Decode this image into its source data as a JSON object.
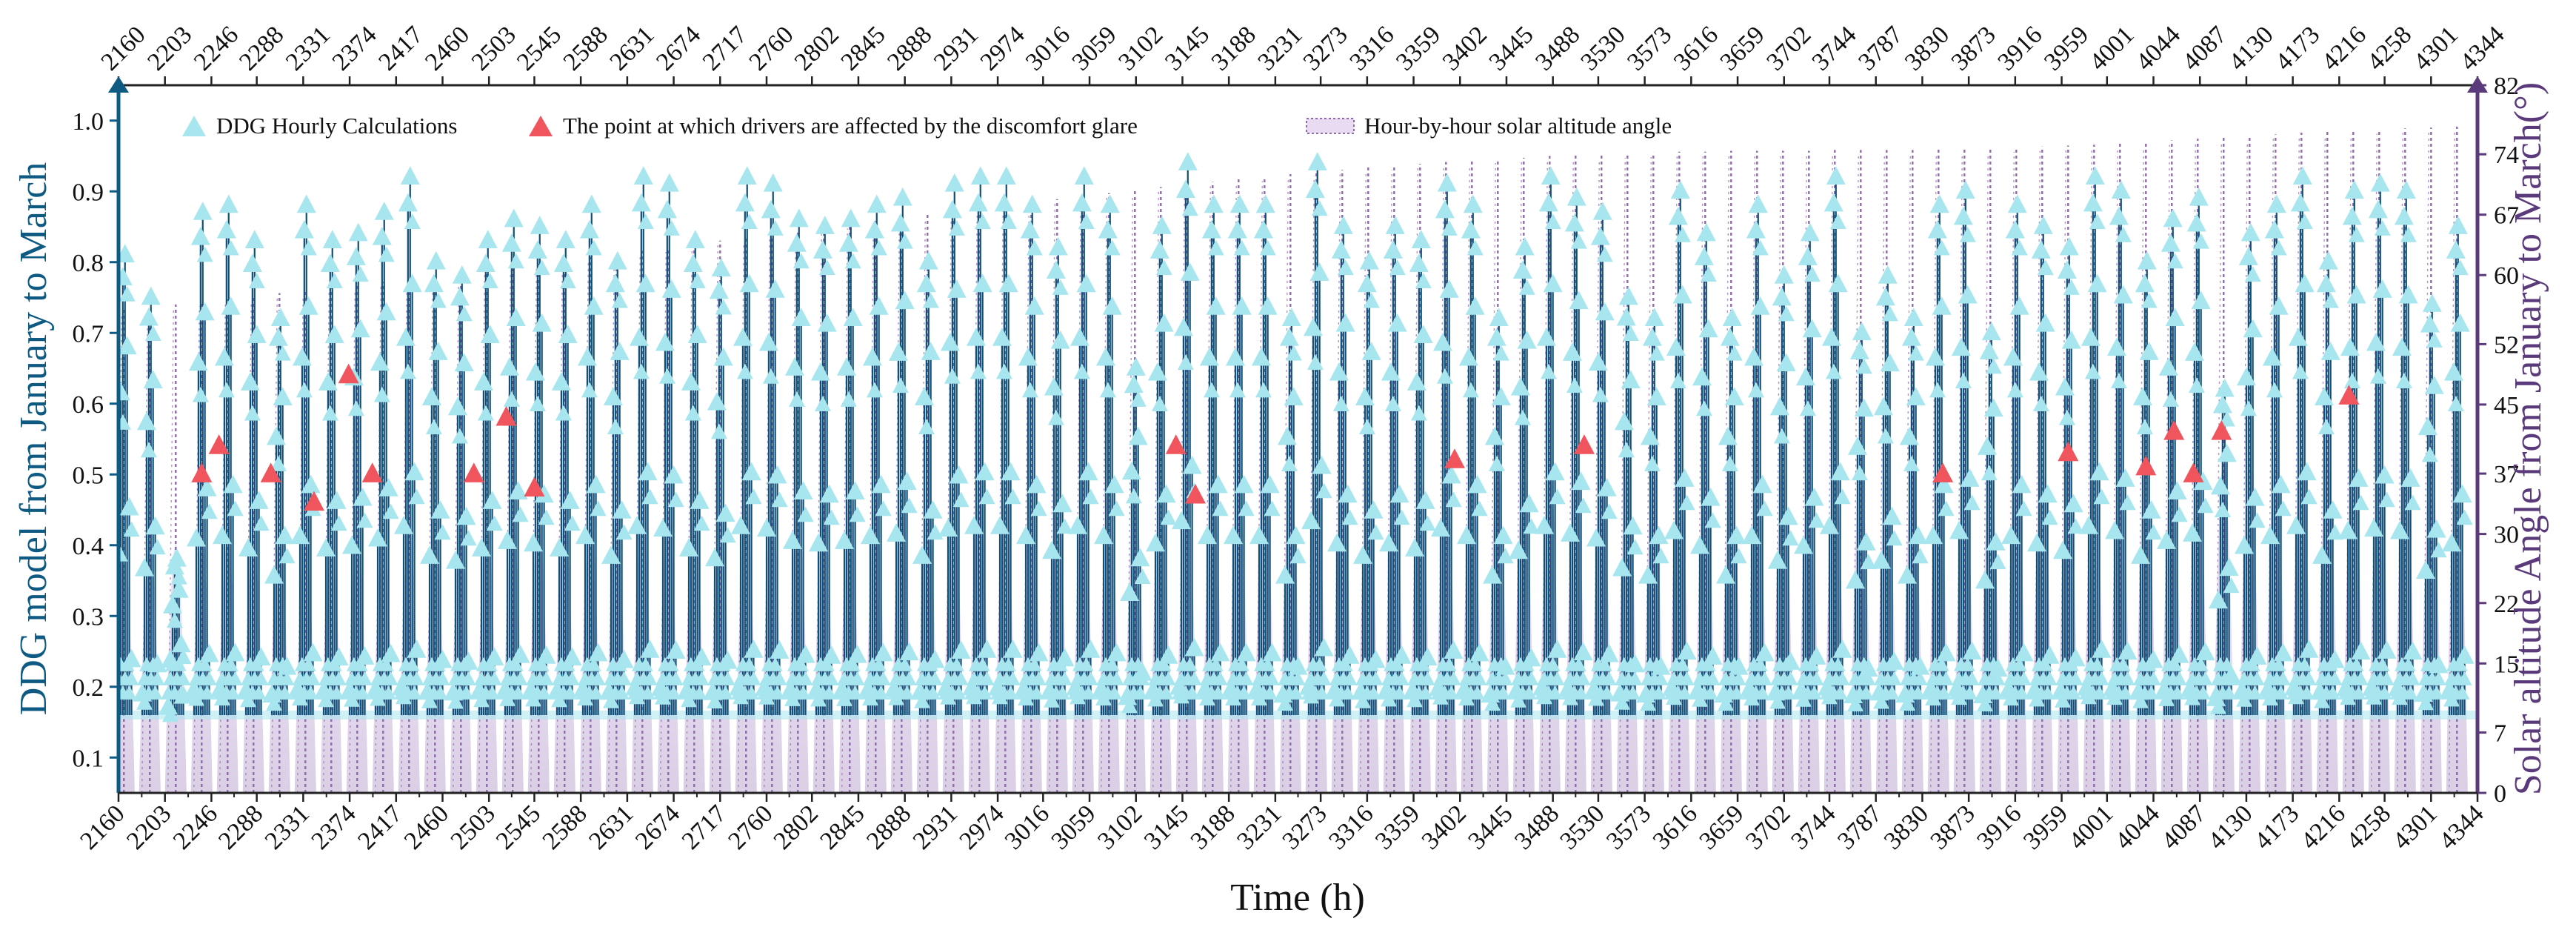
{
  "chart_data": {
    "type": "scatter",
    "xlabel": "Time (h)",
    "ylabel": "DDG model from January to March",
    "y2label": "Solar altitude Angle from January to March(°)",
    "xlim": [
      2160,
      4344
    ],
    "ylim": [
      0.05,
      1.05
    ],
    "y2lim": [
      0,
      82
    ],
    "x_ticks": [
      2160,
      2203,
      2246,
      2288,
      2331,
      2374,
      2417,
      2460,
      2503,
      2545,
      2588,
      2631,
      2674,
      2717,
      2760,
      2802,
      2845,
      2888,
      2931,
      2974,
      3016,
      3059,
      3102,
      3145,
      3188,
      3231,
      3273,
      3316,
      3359,
      3402,
      3445,
      3488,
      3530,
      3573,
      3616,
      3659,
      3702,
      3744,
      3787,
      3830,
      3873,
      3916,
      3959,
      4001,
      4044,
      4087,
      4130,
      4173,
      4216,
      4258,
      4301,
      4344
    ],
    "y_ticks": [
      0.1,
      0.2,
      0.3,
      0.4,
      0.5,
      0.6,
      0.7,
      0.8,
      0.9,
      1.0
    ],
    "y_tick_labels": [
      "0.1",
      "0.2",
      "0.3",
      "0.4",
      "0.5",
      "0.6",
      "0.7",
      "0.8",
      "0.9",
      "1.0"
    ],
    "y2_ticks": [
      0,
      7,
      15,
      22,
      30,
      37,
      45,
      52,
      60,
      67,
      74,
      82
    ],
    "baseline_ddg": 0.16,
    "legend": {
      "placement": "top-left",
      "entries": [
        {
          "label": "DDG Hourly Calculations",
          "marker": "triangle",
          "color": "#a8e6ef"
        },
        {
          "label": "The point at which drivers are affected by the discomfort glare",
          "marker": "triangle",
          "color": "#f0555e"
        },
        {
          "label": "Hour-by-hour solar altitude angle",
          "marker": "hatched-box",
          "color": "#8e6aaa"
        }
      ]
    },
    "series": [
      {
        "name": "DDG Hourly Calculations",
        "marker": "triangle",
        "daily_peak_x": [
          2165,
          2189,
          2213,
          2237,
          2261,
          2285,
          2309,
          2333,
          2357,
          2381,
          2405,
          2429,
          2453,
          2477,
          2501,
          2525,
          2549,
          2573,
          2597,
          2621,
          2645,
          2669,
          2693,
          2717,
          2741,
          2765,
          2789,
          2813,
          2837,
          2861,
          2885,
          2909,
          2933,
          2957,
          2981,
          3005,
          3029,
          3053,
          3077,
          3101,
          3125,
          3149,
          3173,
          3197,
          3221,
          3245,
          3269,
          3293,
          3317,
          3341,
          3365,
          3389,
          3413,
          3437,
          3461,
          3485,
          3509,
          3533,
          3557,
          3581,
          3605,
          3629,
          3653,
          3677,
          3701,
          3725,
          3749,
          3773,
          3797,
          3821,
          3845,
          3869,
          3893,
          3917,
          3941,
          3965,
          3989,
          4013,
          4037,
          4061,
          4085,
          4109,
          4133,
          4157,
          4181,
          4205,
          4229,
          4253,
          4277,
          4301,
          4325
        ],
        "daily_peak_ddg": [
          0.81,
          0.75,
          0.38,
          0.87,
          0.88,
          0.83,
          0.72,
          0.88,
          0.83,
          0.84,
          0.87,
          0.92,
          0.8,
          0.78,
          0.83,
          0.86,
          0.85,
          0.83,
          0.88,
          0.8,
          0.92,
          0.91,
          0.83,
          0.79,
          0.92,
          0.91,
          0.86,
          0.85,
          0.86,
          0.88,
          0.89,
          0.8,
          0.91,
          0.92,
          0.92,
          0.88,
          0.82,
          0.92,
          0.88,
          0.65,
          0.85,
          0.94,
          0.88,
          0.88,
          0.88,
          0.72,
          0.94,
          0.85,
          0.8,
          0.85,
          0.83,
          0.91,
          0.88,
          0.72,
          0.82,
          0.92,
          0.89,
          0.87,
          0.75,
          0.72,
          0.9,
          0.84,
          0.72,
          0.88,
          0.78,
          0.84,
          0.92,
          0.7,
          0.78,
          0.72,
          0.88,
          0.9,
          0.7,
          0.88,
          0.85,
          0.82,
          0.92,
          0.9,
          0.8,
          0.86,
          0.89,
          0.62,
          0.84,
          0.88,
          0.92,
          0.8,
          0.9,
          0.91,
          0.9,
          0.74,
          0.85
        ]
      },
      {
        "name": "The point at which drivers are affected by the discomfort glare",
        "marker": "triangle",
        "x": [
          2237,
          2253,
          2301,
          2341,
          2373,
          2395,
          2489,
          2519,
          2545,
          3139,
          3157,
          3397,
          3517,
          3849,
          3965,
          4037,
          4063,
          4081,
          4107,
          4225
        ],
        "y": [
          0.5,
          0.54,
          0.5,
          0.46,
          0.64,
          0.5,
          0.5,
          0.58,
          0.48,
          0.54,
          0.47,
          0.52,
          0.54,
          0.5,
          0.53,
          0.51,
          0.56,
          0.5,
          0.56,
          0.61
        ]
      },
      {
        "name": "Hour-by-hour solar altitude angle",
        "style": "hatched daily arcs",
        "daily_peak_x": [
          2165,
          2189,
          2213,
          2237,
          2261,
          2285,
          2309,
          2333,
          2357,
          2381,
          2405,
          2429,
          2453,
          2477,
          2501,
          2525,
          2549,
          2573,
          2597,
          2621,
          2645,
          2669,
          2693,
          2717,
          2741,
          2765,
          2789,
          2813,
          2837,
          2861,
          2885,
          2909,
          2933,
          2957,
          2981,
          3005,
          3029,
          3053,
          3077,
          3101,
          3125,
          3149,
          3173,
          3197,
          3221,
          3245,
          3269,
          3293,
          3317,
          3341,
          3365,
          3389,
          3413,
          3437,
          3461,
          3485,
          3509,
          3533,
          3557,
          3581,
          3605,
          3629,
          3653,
          3677,
          3701,
          3725,
          3749,
          3773,
          3797,
          3821,
          3845,
          3869,
          3893,
          3917,
          3941,
          3965,
          3989,
          4013,
          4037,
          4061,
          4085,
          4109,
          4133,
          4157,
          4181,
          4205,
          4229,
          4253,
          4277,
          4301,
          4325
        ],
        "daily_peak_angle": [
          56.0,
          56.3,
          56.6,
          56.9,
          57.2,
          57.5,
          57.9,
          58.2,
          58.5,
          58.8,
          59.2,
          59.5,
          59.9,
          60.3,
          60.6,
          61.0,
          61.3,
          61.7,
          62.1,
          62.5,
          62.8,
          63.2,
          63.6,
          64.0,
          64.4,
          64.7,
          65.1,
          65.5,
          65.9,
          66.3,
          66.6,
          67.0,
          67.4,
          67.8,
          68.1,
          68.5,
          68.8,
          69.2,
          69.5,
          69.9,
          70.2,
          70.5,
          70.8,
          71.1,
          71.4,
          71.7,
          72.0,
          72.2,
          72.5,
          72.7,
          72.9,
          73.1,
          73.3,
          73.5,
          73.6,
          73.8,
          73.9,
          74.0,
          74.1,
          74.2,
          74.3,
          74.3,
          74.4,
          74.4,
          74.4,
          74.4,
          74.5,
          74.5,
          74.5,
          74.5,
          74.6,
          74.6,
          74.7,
          74.8,
          74.9,
          75.0,
          75.1,
          75.3,
          75.4,
          75.6,
          75.8,
          75.9,
          76.1,
          76.3,
          76.5,
          76.6,
          76.8,
          76.9,
          77.0,
          77.1,
          77.2
        ]
      }
    ]
  },
  "colors": {
    "left_axis": "#0f5a83",
    "right_axis": "#5b3a7c",
    "ddg_marker": "#a8e6ef",
    "glare_marker": "#f0555e",
    "solar_line": "#8e6aaa",
    "stem": "#0f4f78"
  }
}
